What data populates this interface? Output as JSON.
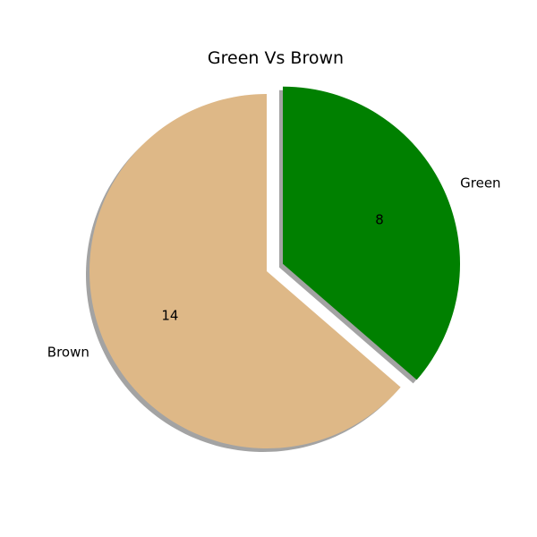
{
  "chart_data": {
    "type": "pie",
    "title": "Green Vs Brown",
    "slices": [
      {
        "label": "Green",
        "value": 8,
        "value_label": "8",
        "color": "#008000",
        "exploded": true
      },
      {
        "label": "Brown",
        "value": 14,
        "value_label": "14",
        "color": "#DEB887",
        "exploded": false
      }
    ],
    "start_angle_deg": 90,
    "direction": "clockwise",
    "shadow": true,
    "shadow_color": "#999999",
    "legend": "none"
  }
}
